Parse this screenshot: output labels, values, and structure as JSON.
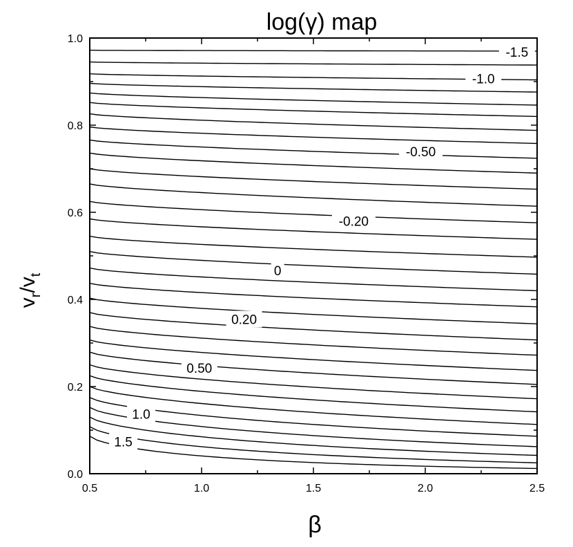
{
  "chart_data": {
    "type": "contour",
    "title": "log(γ) map",
    "xlabel": "β",
    "ylabel": {
      "main": "v",
      "sub1": "r",
      "sep": "/v",
      "sub2": "t"
    },
    "xlim": [
      0.5,
      2.5
    ],
    "ylim": [
      0.0,
      1.0
    ],
    "x_ticks": [
      "0.5",
      "1.0",
      "1.5",
      "2.0",
      "2.5"
    ],
    "y_ticks": [
      "0.0",
      "0.2",
      "0.4",
      "0.6",
      "0.8",
      "1.0"
    ],
    "x_tick_values": [
      0.5,
      1.0,
      1.5,
      2.0,
      2.5
    ],
    "y_tick_values": [
      0.0,
      0.2,
      0.4,
      0.6,
      0.8,
      1.0
    ],
    "grid": false,
    "contour_lines": [
      {
        "y_at_x_min": 0.972,
        "y_at_x_max": 0.97
      },
      {
        "y_at_x_min": 0.945,
        "y_at_x_max": 0.938
      },
      {
        "y_at_x_min": 0.918,
        "y_at_x_max": 0.904
      },
      {
        "y_at_x_min": 0.896,
        "y_at_x_max": 0.876
      },
      {
        "y_at_x_min": 0.874,
        "y_at_x_max": 0.846
      },
      {
        "y_at_x_min": 0.852,
        "y_at_x_max": 0.82
      },
      {
        "y_at_x_min": 0.826,
        "y_at_x_max": 0.788
      },
      {
        "y_at_x_min": 0.796,
        "y_at_x_max": 0.758
      },
      {
        "y_at_x_min": 0.766,
        "y_at_x_max": 0.724
      },
      {
        "y_at_x_min": 0.736,
        "y_at_x_max": 0.69
      },
      {
        "y_at_x_min": 0.7,
        "y_at_x_max": 0.653
      },
      {
        "y_at_x_min": 0.665,
        "y_at_x_max": 0.614
      },
      {
        "y_at_x_min": 0.625,
        "y_at_x_max": 0.576
      },
      {
        "y_at_x_min": 0.585,
        "y_at_x_max": 0.538
      },
      {
        "y_at_x_min": 0.545,
        "y_at_x_max": 0.497
      },
      {
        "y_at_x_min": 0.51,
        "y_at_x_max": 0.458
      },
      {
        "y_at_x_min": 0.472,
        "y_at_x_max": 0.42
      },
      {
        "y_at_x_min": 0.437,
        "y_at_x_max": 0.383
      },
      {
        "y_at_x_min": 0.403,
        "y_at_x_max": 0.344
      },
      {
        "y_at_x_min": 0.37,
        "y_at_x_max": 0.307
      },
      {
        "y_at_x_min": 0.338,
        "y_at_x_max": 0.272
      },
      {
        "y_at_x_min": 0.307,
        "y_at_x_max": 0.237
      },
      {
        "y_at_x_min": 0.279,
        "y_at_x_max": 0.205
      },
      {
        "y_at_x_min": 0.25,
        "y_at_x_max": 0.172
      },
      {
        "y_at_x_min": 0.225,
        "y_at_x_max": 0.142
      },
      {
        "y_at_x_min": 0.2,
        "y_at_x_max": 0.113
      },
      {
        "y_at_x_min": 0.175,
        "y_at_x_max": 0.086
      },
      {
        "y_at_x_min": 0.152,
        "y_at_x_max": 0.062
      },
      {
        "y_at_x_min": 0.13,
        "y_at_x_max": 0.042
      },
      {
        "y_at_x_min": 0.108,
        "y_at_x_max": 0.025
      },
      {
        "y_at_x_min": 0.086,
        "y_at_x_max": 0.012
      }
    ],
    "contour_labels": [
      {
        "text": "-1.5",
        "x": 2.41,
        "y": 0.968
      },
      {
        "text": "-1.0",
        "x": 2.26,
        "y": 0.907
      },
      {
        "text": "-0.50",
        "x": 1.98,
        "y": 0.74
      },
      {
        "text": "-0.20",
        "x": 1.68,
        "y": 0.58
      },
      {
        "text": "0",
        "x": 1.34,
        "y": 0.467
      },
      {
        "text": "0.20",
        "x": 1.19,
        "y": 0.355
      },
      {
        "text": "0.50",
        "x": 0.99,
        "y": 0.243
      },
      {
        "text": "1.0",
        "x": 0.73,
        "y": 0.137
      },
      {
        "text": "1.5",
        "x": 0.65,
        "y": 0.074
      }
    ]
  }
}
